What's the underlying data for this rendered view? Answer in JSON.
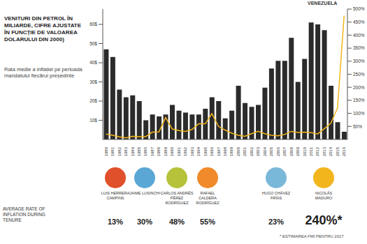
{
  "chart_data": {
    "type": "bar",
    "title": "VENITURI DIN PETROL ÎN MILIARDE, CIFRE AJUSTATE ÎN FUNCȚIE DE VALOAREA DOLARULUI DIN 2000)",
    "subtitle": "Rata medie a inflației pe perioada mandatului fiecărui președinte",
    "corner_label": "VENEZUELA",
    "categories": [
      "1980",
      "1981",
      "1982",
      "1983",
      "1984",
      "1985",
      "1986",
      "1987",
      "1988",
      "1989",
      "1990",
      "1991",
      "1992",
      "1993",
      "1994",
      "1995",
      "1996",
      "1997",
      "1998",
      "1999",
      "2000",
      "2001",
      "2002",
      "2003",
      "2004",
      "2005",
      "2006",
      "2007",
      "2008",
      "2009",
      "2010",
      "2011",
      "2012",
      "2013",
      "2014",
      "2015",
      "2016"
    ],
    "series": [
      {
        "type": "bar",
        "color": "#2b2b2b",
        "values": [
          47,
          43,
          26,
          22,
          23,
          20,
          10,
          13,
          12,
          13,
          18,
          15,
          14,
          13,
          13,
          16,
          22,
          20,
          11,
          15,
          28,
          19,
          17,
          18,
          27,
          37,
          41,
          41,
          53,
          30,
          42,
          61,
          60,
          57,
          28,
          9,
          4
        ]
      },
      {
        "type": "line",
        "axis": "y2",
        "color": "#f2b51c",
        "values": [
          21,
          16,
          10,
          6,
          12,
          11,
          11,
          28,
          29,
          84,
          40,
          34,
          31,
          38,
          60,
          60,
          99,
          50,
          36,
          24,
          16,
          12,
          22,
          31,
          22,
          16,
          14,
          19,
          31,
          27,
          28,
          26,
          21,
          41,
          62,
          121,
          475
        ]
      }
    ],
    "ylim": [
      0,
      68
    ],
    "yticks": [
      {
        "value": 10,
        "label": "10$"
      },
      {
        "value": 20,
        "label": "20$"
      },
      {
        "value": 30,
        "label": "30$"
      },
      {
        "value": 40,
        "label": "40$"
      },
      {
        "value": 50,
        "label": "50$"
      },
      {
        "value": 60,
        "label": "60$"
      }
    ],
    "y2lim": [
      0,
      500
    ],
    "y2ticks": [
      {
        "value": 50,
        "label": "50%"
      },
      {
        "value": 100,
        "label": "100%"
      },
      {
        "value": 150,
        "label": "150%"
      },
      {
        "value": 200,
        "label": "200%"
      },
      {
        "value": 250,
        "label": "250%"
      },
      {
        "value": 300,
        "label": "300%"
      },
      {
        "value": 350,
        "label": "350%"
      },
      {
        "value": 400,
        "label": "400%"
      },
      {
        "value": 450,
        "label": "450%"
      },
      {
        "value": 500,
        "label": "500%"
      }
    ],
    "grid": false,
    "rate_title": "AVERAGE RATE OF INFLATION DURING TENURE",
    "presidents": [
      {
        "name": "LUIS HERRERA CAMPINS",
        "color": "#e0502a",
        "rate": 13,
        "label": "13%"
      },
      {
        "name": "JAIME LUSINCHI",
        "color": "#5aa7d6",
        "rate": 30,
        "label": "30%"
      },
      {
        "name": "CARLOS ANDRÉS PÉREZ RODRÍGUEZ",
        "color": "#b5c23a",
        "rate": 48,
        "label": "48%"
      },
      {
        "name": "RAFAEL CALDERA RODRÍGUEZ",
        "color": "#f08a2a",
        "rate": 55,
        "label": "55%"
      },
      {
        "name": "HUGO CHÁVEZ FRÍAS",
        "color": "#7ab8d9",
        "rate": 23,
        "label": "23%"
      },
      {
        "name": "NICOLÁS MADURO",
        "color": "#f2b51c",
        "rate": 240,
        "label": "240%*"
      }
    ],
    "footnote": "* ESTIMAREA FMI PENTRU 2017"
  }
}
